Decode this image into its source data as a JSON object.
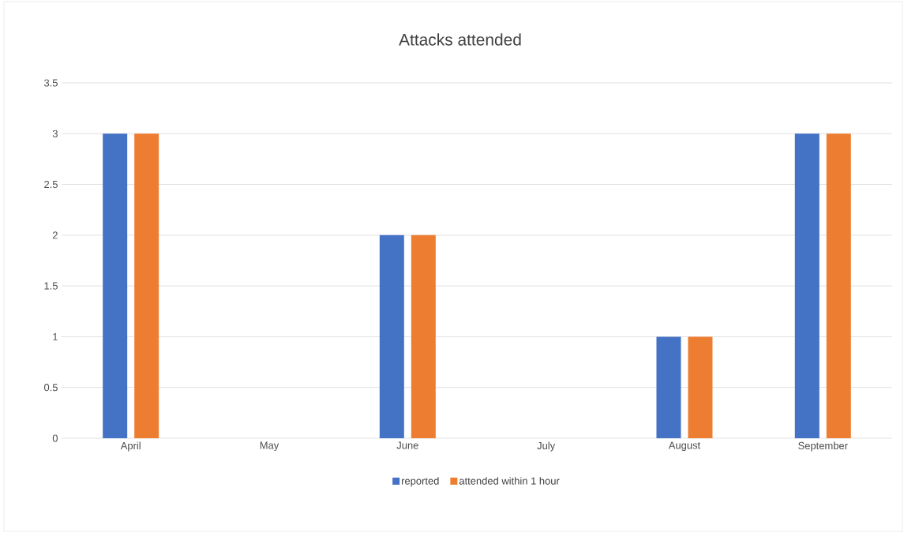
{
  "chart_data": {
    "type": "bar",
    "title": "Attacks attended",
    "categories": [
      "April",
      "May",
      "June",
      "July",
      "August",
      "September"
    ],
    "series": [
      {
        "name": "reported",
        "color": "#4472c4",
        "values": [
          3,
          0,
          2,
          0,
          1,
          3
        ]
      },
      {
        "name": "attended within 1 hour",
        "color": "#ed7d31",
        "values": [
          3,
          0,
          2,
          0,
          1,
          3
        ]
      }
    ],
    "ylim": [
      0,
      3.5
    ],
    "yticks": [
      0,
      0.5,
      1,
      1.5,
      2,
      2.5,
      3,
      3.5
    ],
    "grid": "y",
    "legend": "bottom"
  }
}
